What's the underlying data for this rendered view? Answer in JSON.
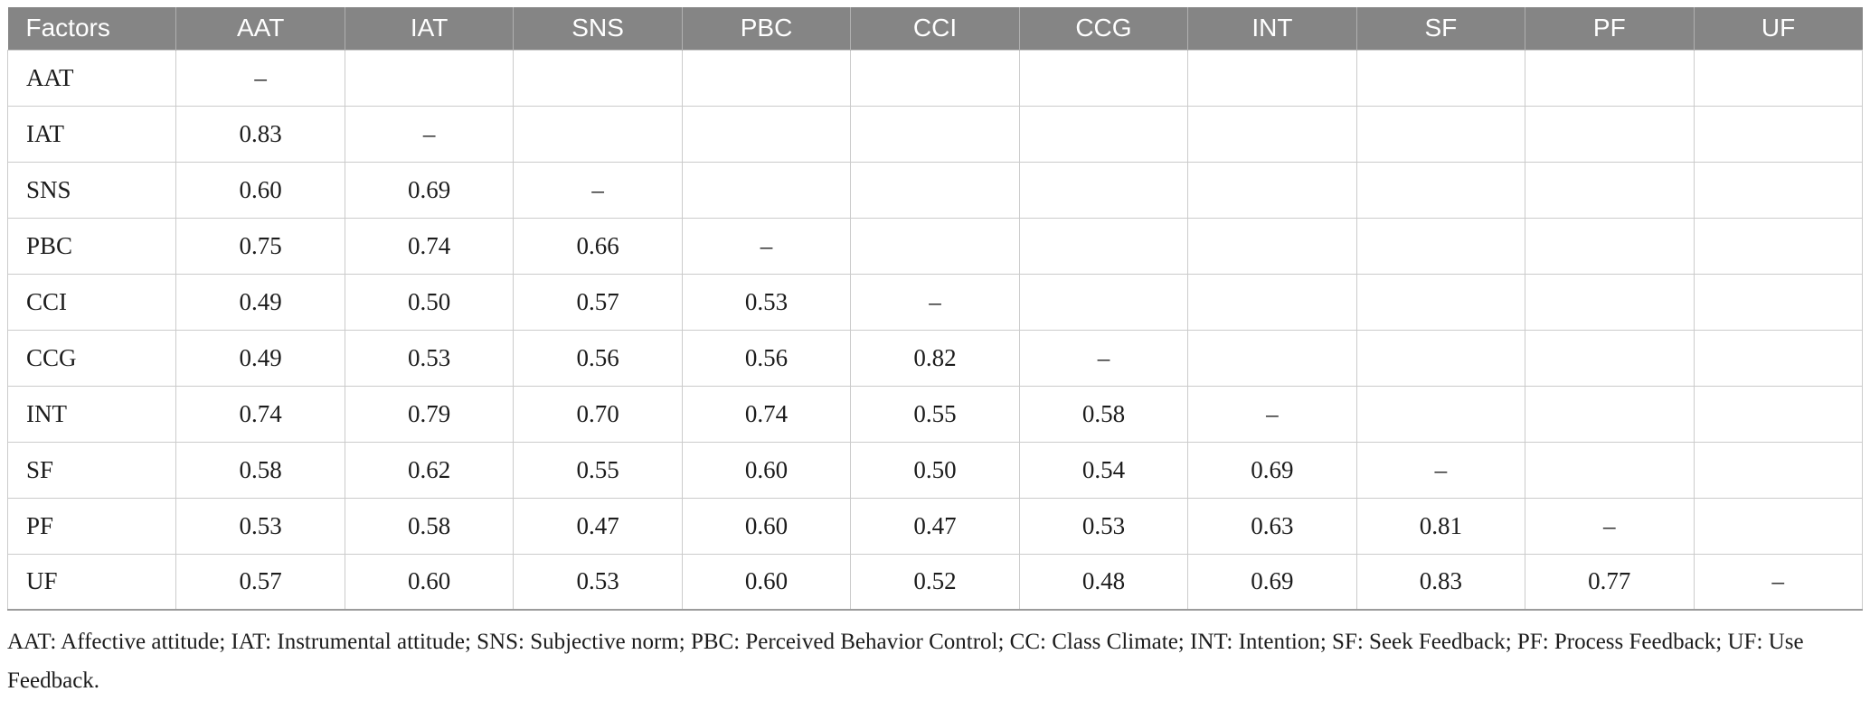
{
  "colors": {
    "header_bg": "#858585",
    "header_text": "#ffffff",
    "header_separator": "#b0b0b0",
    "row_border": "#cbcbcb",
    "table_bottom_border": "#9b9b9b",
    "body_text": "#1c1c1c"
  },
  "table": {
    "columns": [
      "Factors",
      "AAT",
      "IAT",
      "SNS",
      "PBC",
      "CCI",
      "CCG",
      "INT",
      "SF",
      "PF",
      "UF"
    ],
    "rows": [
      {
        "label": "AAT",
        "values": [
          "–",
          "",
          "",
          "",
          "",
          "",
          "",
          "",
          "",
          ""
        ]
      },
      {
        "label": "IAT",
        "values": [
          "0.83",
          "–",
          "",
          "",
          "",
          "",
          "",
          "",
          "",
          ""
        ]
      },
      {
        "label": "SNS",
        "values": [
          "0.60",
          "0.69",
          "–",
          "",
          "",
          "",
          "",
          "",
          "",
          ""
        ]
      },
      {
        "label": "PBC",
        "values": [
          "0.75",
          "0.74",
          "0.66",
          "–",
          "",
          "",
          "",
          "",
          "",
          ""
        ]
      },
      {
        "label": "CCI",
        "values": [
          "0.49",
          "0.50",
          "0.57",
          "0.53",
          "–",
          "",
          "",
          "",
          "",
          ""
        ]
      },
      {
        "label": "CCG",
        "values": [
          "0.49",
          "0.53",
          "0.56",
          "0.56",
          "0.82",
          "–",
          "",
          "",
          "",
          ""
        ]
      },
      {
        "label": "INT",
        "values": [
          "0.74",
          "0.79",
          "0.70",
          "0.74",
          "0.55",
          "0.58",
          "–",
          "",
          "",
          ""
        ]
      },
      {
        "label": "SF",
        "values": [
          "0.58",
          "0.62",
          "0.55",
          "0.60",
          "0.50",
          "0.54",
          "0.69",
          "–",
          "",
          ""
        ]
      },
      {
        "label": "PF",
        "values": [
          "0.53",
          "0.58",
          "0.47",
          "0.60",
          "0.47",
          "0.53",
          "0.63",
          "0.81",
          "–",
          ""
        ]
      },
      {
        "label": "UF",
        "values": [
          "0.57",
          "0.60",
          "0.53",
          "0.60",
          "0.52",
          "0.48",
          "0.69",
          "0.83",
          "0.77",
          "–"
        ]
      }
    ]
  },
  "footnote": "AAT: Affective attitude; IAT: Instrumental attitude; SNS: Subjective norm; PBC: Perceived Behavior Control; CC: Class Climate; INT: Intention; SF: Seek Feedback; PF: Process Feedback; UF: Use Feedback."
}
